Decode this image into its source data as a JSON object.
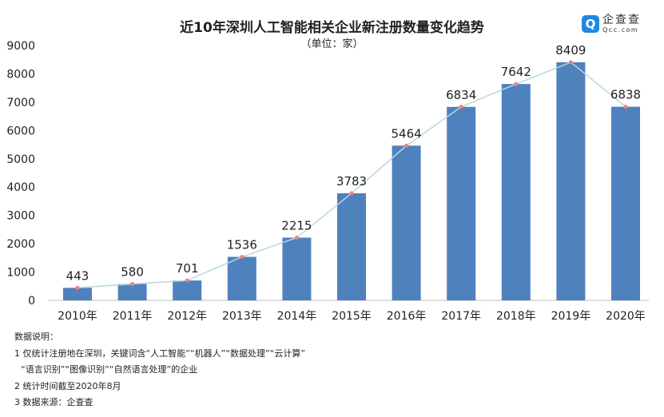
{
  "header": {
    "title": "近10年深圳人工智能相关企业新注册数量变化趋势",
    "subtitle": "（单位：家）",
    "logo_cn": "企查查",
    "logo_en": "Qcc.com"
  },
  "chart_data": {
    "type": "bar",
    "title": "近10年深圳人工智能相关企业新注册数量变化趋势",
    "subtitle": "（单位：家）",
    "categories": [
      "2010年",
      "2011年",
      "2012年",
      "2013年",
      "2014年",
      "2015年",
      "2016年",
      "2017年",
      "2018年",
      "2019年",
      "2020年"
    ],
    "values": [
      443,
      580,
      701,
      1536,
      2215,
      3783,
      5464,
      6834,
      7642,
      8409,
      6838
    ],
    "data_labels": [
      "443",
      "580",
      "701",
      "1536",
      "2215",
      "3783",
      "5464",
      "6834",
      "7642",
      "8409",
      "6838"
    ],
    "overlay_line": true,
    "ylim": [
      0,
      9000
    ],
    "yticks": [
      "0",
      "1000",
      "2000",
      "3000",
      "4000",
      "5000",
      "6000",
      "7000",
      "8000",
      "9000"
    ],
    "xlabel": "",
    "ylabel": "",
    "grid": false,
    "colors": {
      "bar": "#4f81bd",
      "line": "#b7d7e0",
      "marker": "#f08080"
    }
  },
  "notes": {
    "heading": "数据说明：",
    "line1": "1 仅统计注册地在深圳，关键词含“人工智能”“机器人”“数据处理”“云计算”",
    "line1b": "“语言识别”“图像识别”“自然语言处理”的企业",
    "line2": "2 统计时间截至2020年8月",
    "line3": "3 数据来源：企查查"
  }
}
